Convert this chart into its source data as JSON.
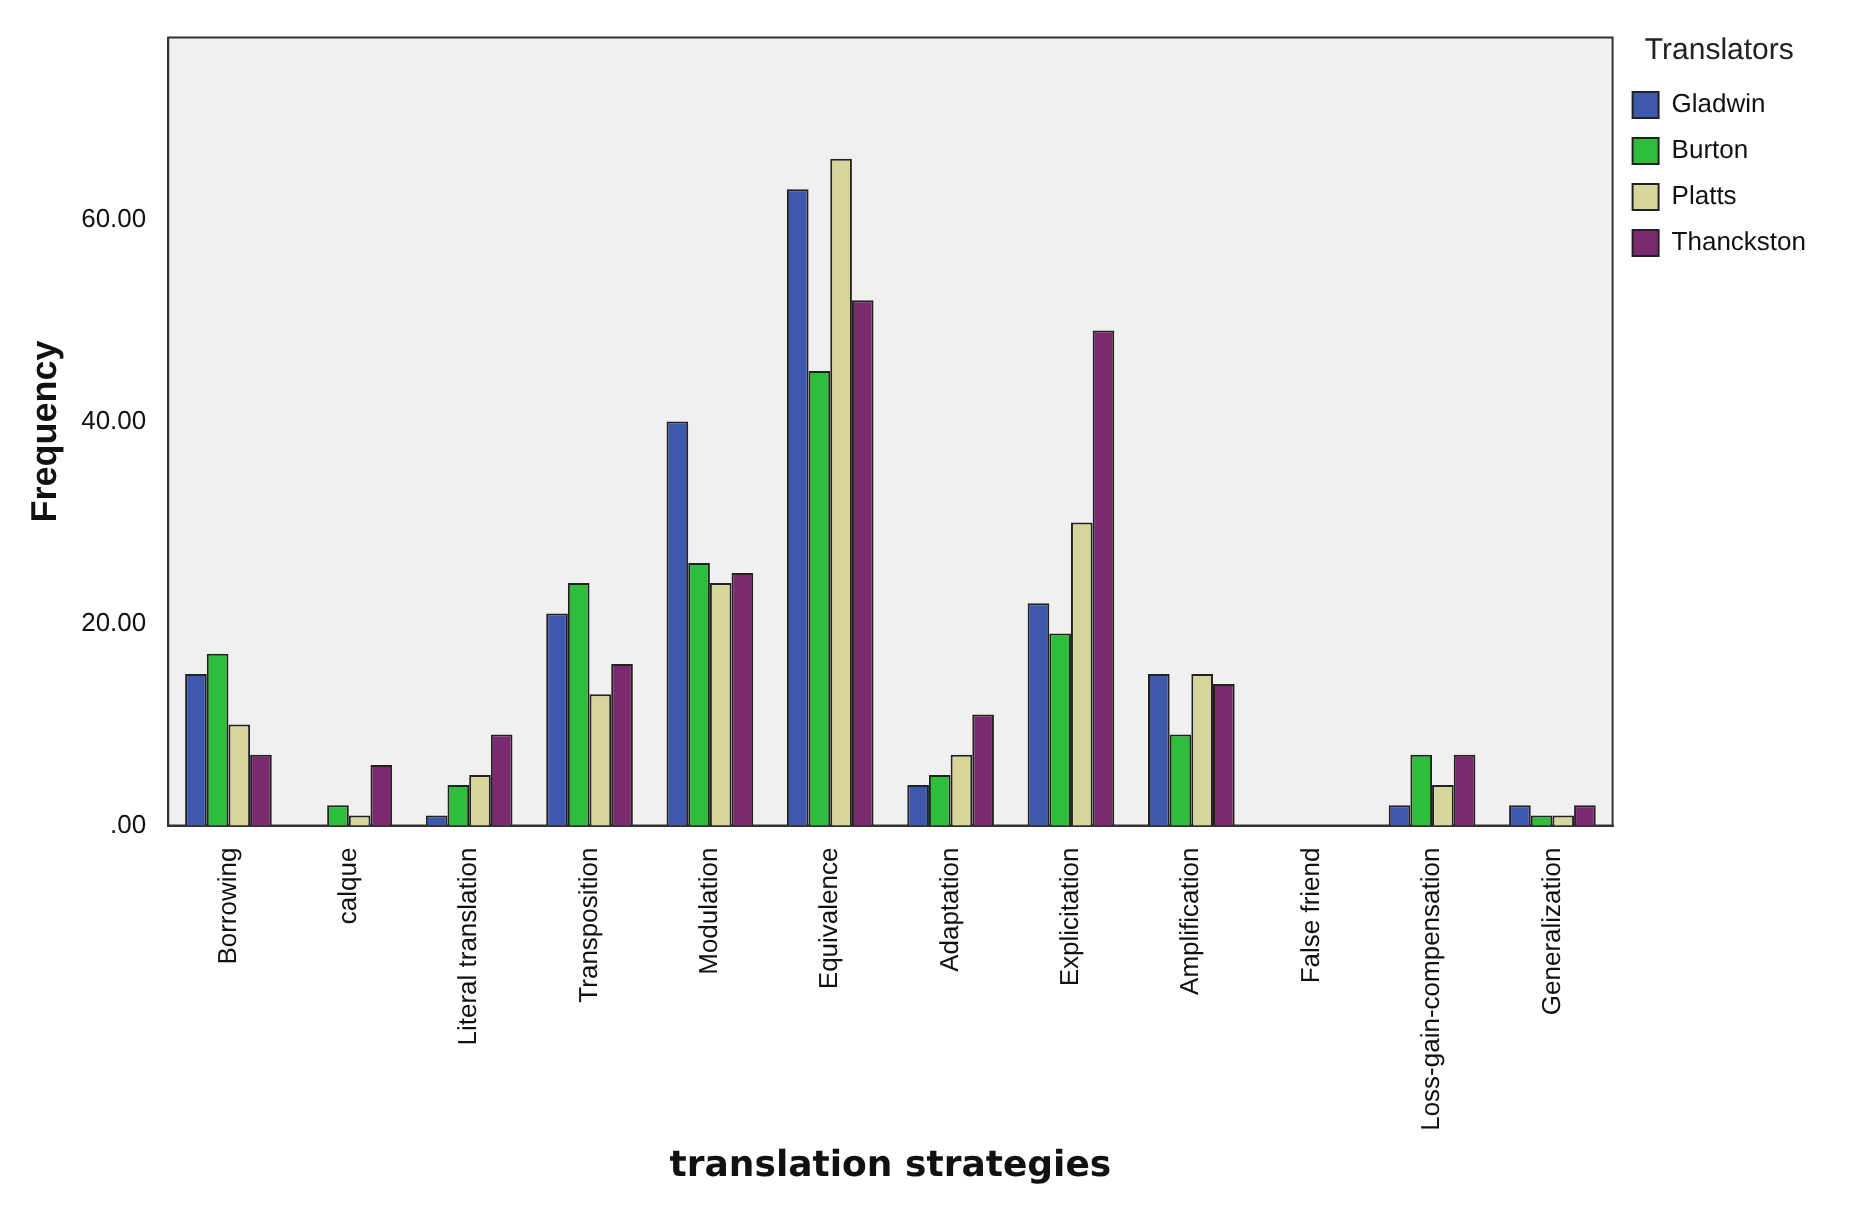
{
  "chart_data": {
    "type": "bar",
    "xlabel": "translation strategies",
    "ylabel": "Frequency",
    "legend_title": "Translators",
    "legend": "top right",
    "grid": false,
    "categories": [
      "Borrowing",
      "calque",
      "Literal translation",
      "Transposition",
      "Modulation",
      "Equivalence",
      "Adaptation",
      "Explicitation",
      "Amplification",
      "False friend",
      "Loss-gain-compensation",
      "Generalization"
    ],
    "ylim": [
      0,
      78
    ],
    "yticks": [
      {
        "value": 0,
        "label": ".00"
      },
      {
        "value": 20,
        "label": "20.00"
      },
      {
        "value": 40,
        "label": "40.00"
      },
      {
        "value": 60,
        "label": "60.00"
      }
    ],
    "series": [
      {
        "name": "Gladwin",
        "color": "#3e58ac",
        "values": [
          15,
          0,
          1,
          21,
          40,
          63,
          4,
          22,
          15,
          0,
          2,
          2
        ]
      },
      {
        "name": "Burton",
        "color": "#2fbd3c",
        "values": [
          17,
          2,
          4,
          24,
          26,
          45,
          5,
          19,
          9,
          0,
          7,
          1
        ]
      },
      {
        "name": "Platts",
        "color": "#d8d59c",
        "values": [
          10,
          1,
          5,
          13,
          24,
          66,
          7,
          30,
          15,
          0,
          4,
          1
        ]
      },
      {
        "name": "Thanckston",
        "color": "#7c2a70",
        "values": [
          7,
          6,
          9,
          16,
          25,
          52,
          11,
          49,
          14,
          0,
          7,
          2
        ]
      }
    ]
  }
}
